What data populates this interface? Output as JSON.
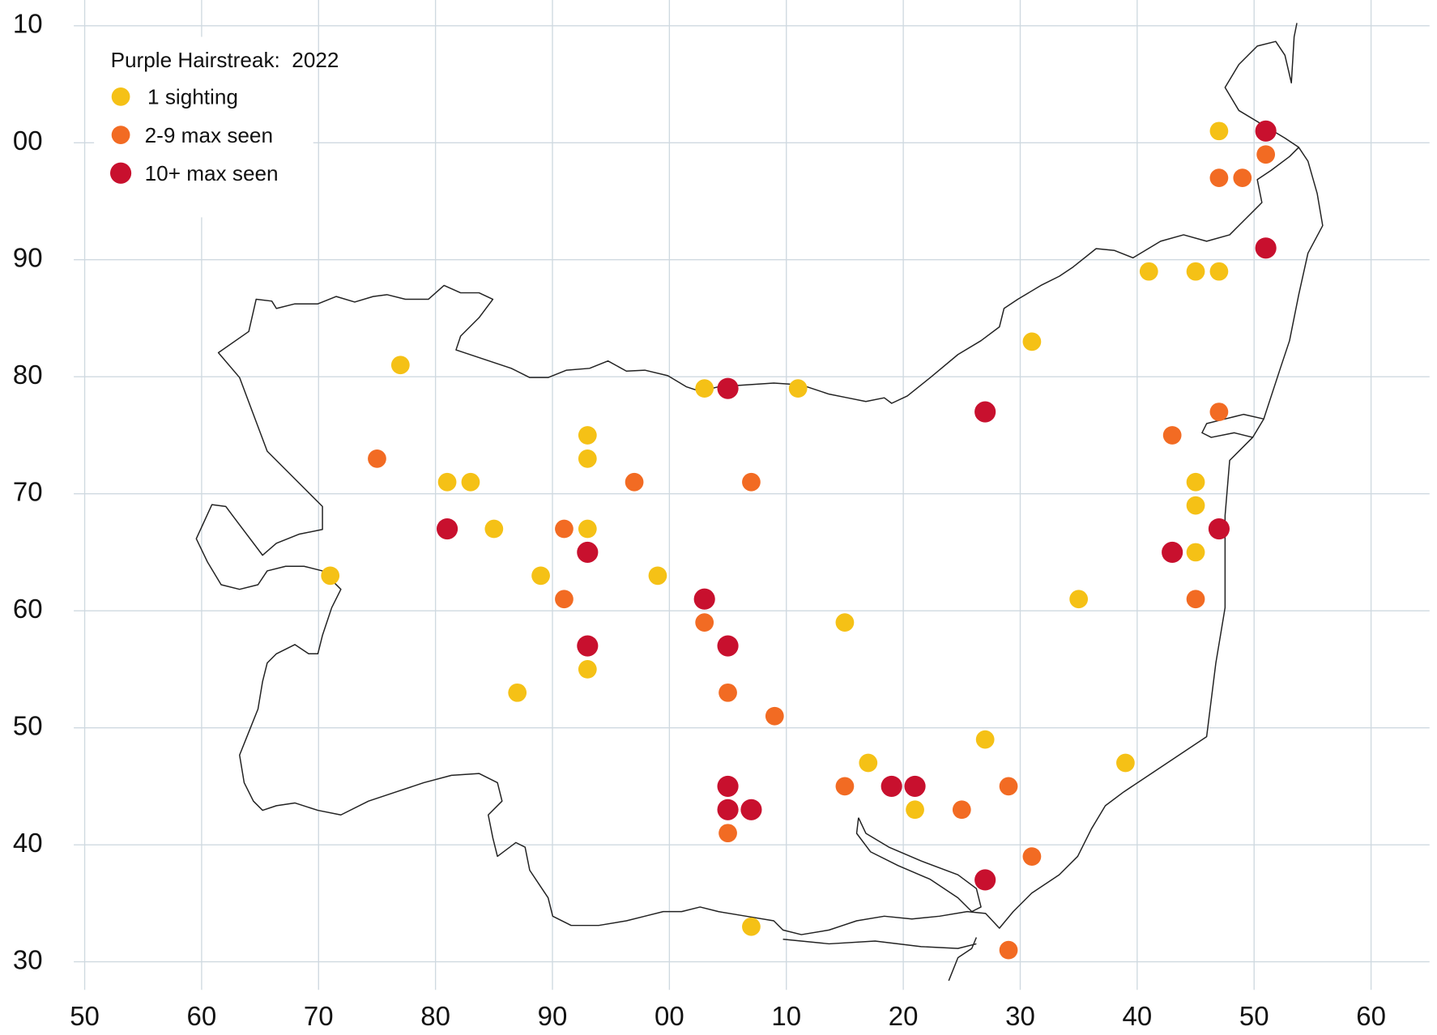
{
  "chart_data": {
    "type": "scatter",
    "title": "Purple Hairstreak:  2022",
    "xlim": [
      47.1,
      165
    ],
    "ylim": [
      27.6,
      112.2
    ],
    "xticks": [
      50,
      60,
      70,
      80,
      90,
      {
        "value": 100,
        "label": "00"
      },
      {
        "value": 110,
        "label": "10"
      },
      {
        "value": 120,
        "label": "20"
      },
      {
        "value": 130,
        "label": "30"
      },
      {
        "value": 140,
        "label": "40"
      },
      {
        "value": 150,
        "label": "50"
      },
      {
        "value": 160,
        "label": "60"
      }
    ],
    "yticks": [
      30,
      40,
      50,
      60,
      70,
      80,
      90,
      {
        "value": 100,
        "label": "00"
      },
      {
        "value": 110,
        "label": "10"
      }
    ],
    "grid": true,
    "legend": "top-left",
    "series": [
      {
        "name": "1 sighting",
        "color": "#f5c116",
        "x": [
          147,
          141,
          145,
          147,
          131,
          77,
          103,
          111,
          93,
          93,
          81,
          83,
          85,
          93,
          71,
          89,
          99,
          145,
          145,
          145,
          135,
          115,
          93,
          87,
          127,
          117,
          139,
          121,
          107
        ],
        "values": [
          101,
          89,
          89,
          89,
          83,
          81,
          79,
          79,
          75,
          73,
          71,
          71,
          67,
          67,
          63,
          63,
          63,
          71,
          69,
          65,
          61,
          59,
          55,
          53,
          49,
          47,
          47,
          43,
          33
        ]
      },
      {
        "name": "2-9 max seen",
        "color": "#f26b23",
        "x": [
          151,
          147,
          149,
          75,
          97,
          107,
          143,
          147,
          91,
          91,
          103,
          145,
          105,
          109,
          115,
          129,
          125,
          105,
          131,
          129
        ],
        "values": [
          99,
          97,
          97,
          73,
          71,
          71,
          75,
          77,
          67,
          61,
          59,
          61,
          53,
          51,
          45,
          45,
          43,
          41,
          39,
          31
        ]
      },
      {
        "name": "10+ max seen",
        "color": "#c8102e",
        "x": [
          151,
          151,
          105,
          127,
          81,
          93,
          147,
          143,
          103,
          105,
          93,
          105,
          105,
          107,
          119,
          121,
          127
        ],
        "values": [
          101,
          91,
          79,
          77,
          67,
          65,
          67,
          65,
          61,
          57,
          57,
          45,
          43,
          43,
          45,
          45,
          37
        ]
      }
    ]
  }
}
